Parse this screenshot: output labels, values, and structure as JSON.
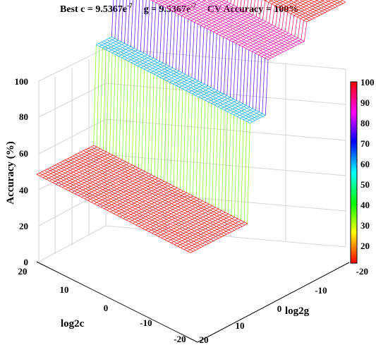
{
  "chart_data": {
    "type": "surface3d",
    "title": {
      "best_c_label": "Best c = 9.5367e",
      "best_c_exp": "-7",
      "g_label": "g = 9.5367e",
      "g_exp": "-7",
      "cv_label": "CV Accuracy = 100%"
    },
    "zlabel": "Accuracy (%)",
    "xlabel": "log2c",
    "ylabel": "log2g",
    "zlim": [
      0,
      100
    ],
    "clim": [
      10,
      100
    ],
    "colormap": "hsv",
    "grid": true,
    "colorbar": true,
    "z_ticks": [
      "0",
      "20",
      "40",
      "60",
      "80",
      "100"
    ],
    "c_ticks": [
      "20",
      "10",
      "0",
      "-10",
      "-20"
    ],
    "g_ticks": [
      "-10",
      "0",
      "10",
      "20"
    ],
    "g_ticks_far": [
      "-20"
    ],
    "colorbar_ticks": [
      "100",
      "90",
      "80",
      "70",
      "60",
      "50",
      "40",
      "30",
      "20",
      "-20"
    ],
    "x_log2c": [
      -20,
      20
    ],
    "y_log2g": [
      -20,
      20
    ],
    "accuracy_regions": [
      {
        "log2g_min": -20,
        "log2g_max": -10,
        "accuracy": 100
      },
      {
        "log2g_min": -10,
        "log2g_max": 0,
        "accuracy": 90
      },
      {
        "log2g_min": 0,
        "log2g_max": 5,
        "accuracy": 60
      },
      {
        "log2g_min": 5,
        "log2g_max": 20,
        "accuracy": 5
      }
    ]
  }
}
